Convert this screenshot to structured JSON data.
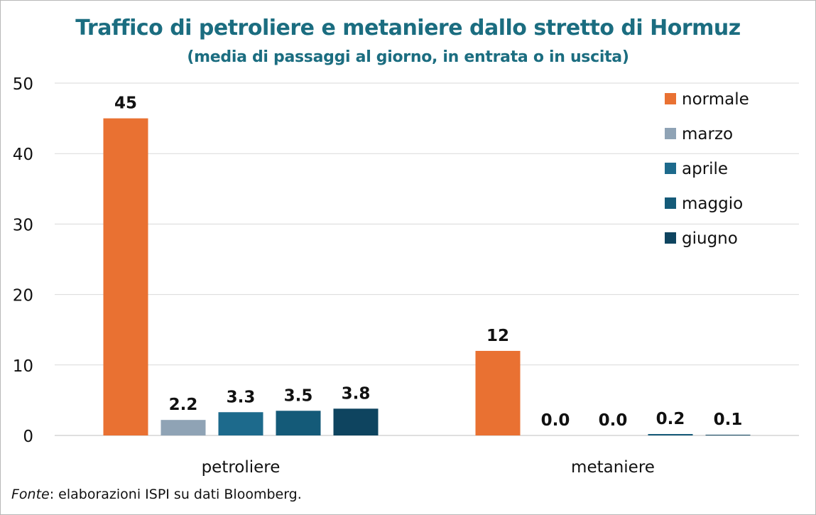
{
  "chart_data": {
    "type": "bar",
    "title": "Traffico di petroliere e metaniere dallo stretto di Hormuz",
    "subtitle": "(media di passaggi al giorno, in entrata o in uscita)",
    "categories": [
      "petroliere",
      "metaniere"
    ],
    "series": [
      {
        "name": "normale",
        "color": "#e97132",
        "values": [
          45,
          12
        ],
        "labels": [
          "45",
          "12"
        ]
      },
      {
        "name": "marzo",
        "color": "#8fa3b5",
        "values": [
          2.2,
          0.0
        ],
        "labels": [
          "2.2",
          "0.0"
        ]
      },
      {
        "name": "aprile",
        "color": "#1d6a8c",
        "values": [
          3.3,
          0.0
        ],
        "labels": [
          "3.3",
          "0.0"
        ]
      },
      {
        "name": "maggio",
        "color": "#145a78",
        "values": [
          3.5,
          0.2
        ],
        "labels": [
          "3.5",
          "0.2"
        ]
      },
      {
        "name": "giugno",
        "color": "#0e445f",
        "values": [
          3.8,
          0.1
        ],
        "labels": [
          "3.8",
          "0.1"
        ]
      }
    ],
    "yticks": [
      "0",
      "10",
      "20",
      "30",
      "40",
      "50"
    ],
    "ylim": [
      0,
      50
    ],
    "grid": true,
    "legend_position": "top-right"
  },
  "source": {
    "label": "Fonte",
    "text": ": elaborazioni ISPI su dati Bloomberg."
  }
}
